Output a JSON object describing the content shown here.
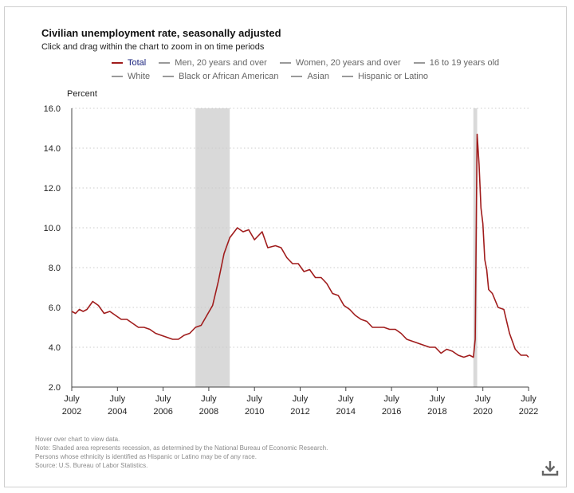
{
  "header": {
    "title": "Civilian unemployment rate, seasonally adjusted",
    "subtitle": "Click and drag within the chart to zoom in on time periods"
  },
  "legend": {
    "row1": [
      {
        "label": "Total",
        "active": true
      },
      {
        "label": "Men, 20 years and over"
      },
      {
        "label": "Women, 20 years and over"
      },
      {
        "label": "16 to 19 years old"
      }
    ],
    "row2": [
      {
        "label": "White"
      },
      {
        "label": "Black or African American"
      },
      {
        "label": "Asian"
      },
      {
        "label": "Hispanic or Latino"
      }
    ]
  },
  "notes": {
    "line1": "Hover over chart to view data.",
    "line2": "Note: Shaded area represents recession, as determined by the National Bureau of Economic Research.",
    "line3": "Persons whose ethnicity is identified as Hispanic or Latino may be of any race.",
    "line4": "Source: U.S. Bureau of Labor Statistics."
  },
  "colors": {
    "series": "#a01c1c",
    "recession": "#d9d9d9",
    "grid": "#cccccc",
    "legend_inactive": "#9a9a9a",
    "active_label": "#1a237e"
  },
  "icons": {
    "download": "download-icon"
  },
  "chart_data": {
    "type": "line",
    "ylabel": "Percent",
    "ylim": [
      2.0,
      16.0
    ],
    "yticks": [
      "2.0",
      "4.0",
      "6.0",
      "8.0",
      "10.0",
      "12.0",
      "14.0",
      "16.0"
    ],
    "xticks": [
      {
        "month": "July",
        "year": "2002"
      },
      {
        "month": "July",
        "year": "2004"
      },
      {
        "month": "July",
        "year": "2006"
      },
      {
        "month": "July",
        "year": "2008"
      },
      {
        "month": "July",
        "year": "2010"
      },
      {
        "month": "July",
        "year": "2012"
      },
      {
        "month": "July",
        "year": "2014"
      },
      {
        "month": "July",
        "year": "2016"
      },
      {
        "month": "July",
        "year": "2018"
      },
      {
        "month": "July",
        "year": "2020"
      },
      {
        "month": "July",
        "year": "2022"
      }
    ],
    "xlim": [
      "2002-07",
      "2022-07"
    ],
    "grid": "horizontal dotted",
    "recessions": [
      {
        "start": "2007-12",
        "end": "2009-06"
      },
      {
        "start": "2020-02",
        "end": "2020-04"
      }
    ],
    "series": [
      {
        "name": "Total",
        "points": [
          [
            "2002-07",
            5.8
          ],
          [
            "2002-09",
            5.7
          ],
          [
            "2002-11",
            5.9
          ],
          [
            "2003-01",
            5.8
          ],
          [
            "2003-03",
            5.9
          ],
          [
            "2003-06",
            6.3
          ],
          [
            "2003-09",
            6.1
          ],
          [
            "2003-12",
            5.7
          ],
          [
            "2004-03",
            5.8
          ],
          [
            "2004-06",
            5.6
          ],
          [
            "2004-09",
            5.4
          ],
          [
            "2004-12",
            5.4
          ],
          [
            "2005-03",
            5.2
          ],
          [
            "2005-06",
            5.0
          ],
          [
            "2005-09",
            5.0
          ],
          [
            "2005-12",
            4.9
          ],
          [
            "2006-03",
            4.7
          ],
          [
            "2006-06",
            4.6
          ],
          [
            "2006-09",
            4.5
          ],
          [
            "2006-12",
            4.4
          ],
          [
            "2007-03",
            4.4
          ],
          [
            "2007-06",
            4.6
          ],
          [
            "2007-09",
            4.7
          ],
          [
            "2007-12",
            5.0
          ],
          [
            "2008-03",
            5.1
          ],
          [
            "2008-06",
            5.6
          ],
          [
            "2008-09",
            6.1
          ],
          [
            "2008-12",
            7.3
          ],
          [
            "2009-03",
            8.7
          ],
          [
            "2009-06",
            9.5
          ],
          [
            "2009-10",
            10.0
          ],
          [
            "2010-01",
            9.8
          ],
          [
            "2010-04",
            9.9
          ],
          [
            "2010-07",
            9.4
          ],
          [
            "2010-11",
            9.8
          ],
          [
            "2011-02",
            9.0
          ],
          [
            "2011-06",
            9.1
          ],
          [
            "2011-09",
            9.0
          ],
          [
            "2011-12",
            8.5
          ],
          [
            "2012-03",
            8.2
          ],
          [
            "2012-06",
            8.2
          ],
          [
            "2012-09",
            7.8
          ],
          [
            "2012-12",
            7.9
          ],
          [
            "2013-03",
            7.5
          ],
          [
            "2013-06",
            7.5
          ],
          [
            "2013-09",
            7.2
          ],
          [
            "2013-12",
            6.7
          ],
          [
            "2014-03",
            6.6
          ],
          [
            "2014-06",
            6.1
          ],
          [
            "2014-09",
            5.9
          ],
          [
            "2014-12",
            5.6
          ],
          [
            "2015-03",
            5.4
          ],
          [
            "2015-06",
            5.3
          ],
          [
            "2015-09",
            5.0
          ],
          [
            "2015-12",
            5.0
          ],
          [
            "2016-03",
            5.0
          ],
          [
            "2016-06",
            4.9
          ],
          [
            "2016-09",
            4.9
          ],
          [
            "2016-12",
            4.7
          ],
          [
            "2017-03",
            4.4
          ],
          [
            "2017-06",
            4.3
          ],
          [
            "2017-09",
            4.2
          ],
          [
            "2017-12",
            4.1
          ],
          [
            "2018-03",
            4.0
          ],
          [
            "2018-06",
            4.0
          ],
          [
            "2018-09",
            3.7
          ],
          [
            "2018-12",
            3.9
          ],
          [
            "2019-03",
            3.8
          ],
          [
            "2019-06",
            3.6
          ],
          [
            "2019-09",
            3.5
          ],
          [
            "2019-12",
            3.6
          ],
          [
            "2020-02",
            3.5
          ],
          [
            "2020-03",
            4.4
          ],
          [
            "2020-04",
            14.7
          ],
          [
            "2020-05",
            13.2
          ],
          [
            "2020-06",
            11.0
          ],
          [
            "2020-07",
            10.2
          ],
          [
            "2020-08",
            8.4
          ],
          [
            "2020-09",
            7.9
          ],
          [
            "2020-10",
            6.9
          ],
          [
            "2020-12",
            6.7
          ],
          [
            "2021-03",
            6.0
          ],
          [
            "2021-06",
            5.9
          ],
          [
            "2021-09",
            4.7
          ],
          [
            "2021-12",
            3.9
          ],
          [
            "2022-03",
            3.6
          ],
          [
            "2022-06",
            3.6
          ],
          [
            "2022-07",
            3.5
          ]
        ]
      }
    ]
  }
}
